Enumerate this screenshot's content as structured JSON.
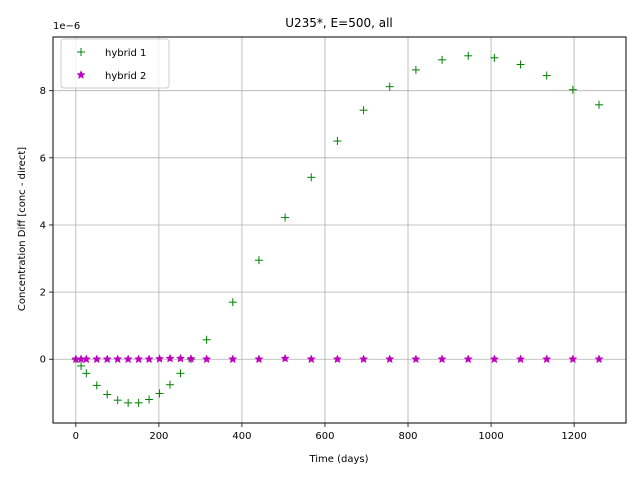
{
  "chart_data": {
    "type": "scatter",
    "title": "U235*, E=500, all",
    "xlabel": "Time (days)",
    "ylabel": "Concentration Diff [conc - direct]",
    "offset_text": "1e−6",
    "xlim": [
      -55,
      1325
    ],
    "ylim": [
      -1.9,
      9.6
    ],
    "x_ticks": [
      0,
      200,
      400,
      600,
      800,
      1000,
      1200
    ],
    "x_tick_labels": [
      "0",
      "200",
      "400",
      "600",
      "800",
      "1000",
      "1200"
    ],
    "y_ticks": [
      0,
      2,
      4,
      6,
      8
    ],
    "y_tick_labels": [
      "0",
      "2",
      "4",
      "6",
      "8"
    ],
    "y_tick_minus": "−2",
    "grid": true,
    "legend_position": "upper-left",
    "series": [
      {
        "name": "hybrid 1",
        "marker": "plus",
        "color": "#008000",
        "x": [
          0,
          12.6,
          25.2,
          50.4,
          75.6,
          100.8,
          126,
          151.2,
          176.4,
          201.6,
          226.8,
          252,
          277.2,
          315,
          378,
          441,
          504,
          567,
          630,
          693,
          756,
          819,
          882,
          945,
          1008,
          1071,
          1134,
          1197,
          1260
        ],
        "y": [
          0,
          -0.2,
          -0.42,
          -0.78,
          -1.05,
          -1.22,
          -1.3,
          -1.3,
          -1.2,
          -1.02,
          -0.76,
          -0.42,
          0.0,
          0.58,
          1.7,
          2.95,
          4.22,
          5.42,
          6.5,
          7.42,
          8.12,
          8.62,
          8.92,
          9.04,
          8.98,
          8.78,
          8.45,
          8.03,
          7.58
        ]
      },
      {
        "name": "hybrid 2",
        "marker": "star",
        "color": "#c000c0",
        "x": [
          0,
          12.6,
          25.2,
          50.4,
          75.6,
          100.8,
          126,
          151.2,
          176.4,
          201.6,
          226.8,
          252,
          277.2,
          315,
          378,
          441,
          504,
          567,
          630,
          693,
          756,
          819,
          882,
          945,
          1008,
          1071,
          1134,
          1197,
          1260
        ],
        "y": [
          0,
          0,
          0,
          0,
          0,
          0,
          0,
          0,
          0,
          0.01,
          0.02,
          0.02,
          0.01,
          0,
          0,
          0,
          0.02,
          0,
          0,
          0,
          0,
          0,
          0,
          0,
          0,
          0,
          0,
          0,
          0
        ]
      }
    ]
  }
}
